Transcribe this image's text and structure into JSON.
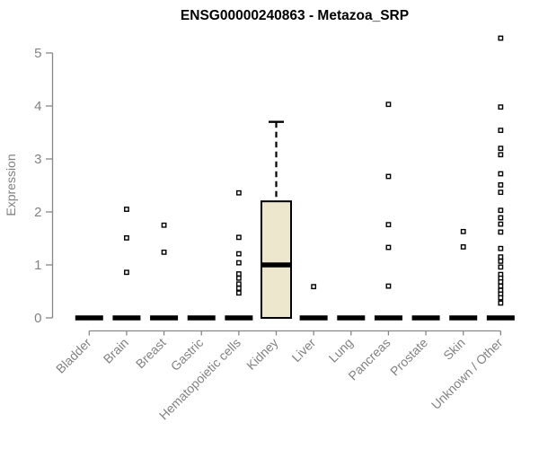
{
  "chart_data": {
    "type": "boxplot",
    "title": "ENSG00000240863 - Metazoa_SRP",
    "ylabel": "Expression",
    "xlabel": "",
    "ylim": [
      0,
      5.3
    ],
    "y_ticks": [
      0,
      1,
      2,
      3,
      4,
      5
    ],
    "legend": "none",
    "grid": false,
    "colors": {
      "background": "#FFFFFF",
      "title": "#000000",
      "axis": "#878787",
      "text": "#828282",
      "data": "#000000",
      "box_fill": "#EDE7CE",
      "point_fill": "#FFFFFF"
    },
    "categories": [
      "Bladder",
      "Brain",
      "Breast",
      "Gastric",
      "Hematopoietic cells",
      "Kidney",
      "Liver",
      "Lung",
      "Pancreas",
      "Prostate",
      "Skin",
      "Unknown / Other"
    ],
    "series": [
      {
        "label": "Bladder",
        "q1": 0,
        "median": 0,
        "q3": 0,
        "whisker_low": 0,
        "whisker_high": 0,
        "outliers": []
      },
      {
        "label": "Brain",
        "q1": 0,
        "median": 0,
        "q3": 0,
        "whisker_low": 0,
        "whisker_high": 0,
        "outliers": [
          2.05,
          1.51,
          0.86
        ]
      },
      {
        "label": "Breast",
        "q1": 0,
        "median": 0,
        "q3": 0,
        "whisker_low": 0,
        "whisker_high": 0,
        "outliers": [
          1.75,
          1.24
        ]
      },
      {
        "label": "Gastric",
        "q1": 0,
        "median": 0,
        "q3": 0,
        "whisker_low": 0,
        "whisker_high": 0,
        "outliers": []
      },
      {
        "label": "Hematopoietic cells",
        "q1": 0,
        "median": 0,
        "q3": 0,
        "whisker_low": 0,
        "whisker_high": 0,
        "outliers": [
          2.36,
          1.52,
          1.21,
          1.04,
          0.83,
          0.75,
          0.64,
          0.56,
          0.47
        ]
      },
      {
        "label": "Kidney",
        "q1": 0,
        "median": 1.0,
        "q3": 2.2,
        "whisker_low": 0,
        "whisker_high": 3.7,
        "outliers": []
      },
      {
        "label": "Liver",
        "q1": 0,
        "median": 0,
        "q3": 0,
        "whisker_low": 0,
        "whisker_high": 0,
        "outliers": [
          0.59
        ]
      },
      {
        "label": "Lung",
        "q1": 0,
        "median": 0,
        "q3": 0,
        "whisker_low": 0,
        "whisker_high": 0,
        "outliers": []
      },
      {
        "label": "Pancreas",
        "q1": 0,
        "median": 0,
        "q3": 0,
        "whisker_low": 0,
        "whisker_high": 0,
        "outliers": [
          4.03,
          2.67,
          1.76,
          1.33,
          0.6
        ]
      },
      {
        "label": "Prostate",
        "q1": 0,
        "median": 0,
        "q3": 0,
        "whisker_low": 0,
        "whisker_high": 0,
        "outliers": []
      },
      {
        "label": "Skin",
        "q1": 0,
        "median": 0,
        "q3": 0,
        "whisker_low": 0,
        "whisker_high": 0,
        "outliers": [
          1.63,
          1.34
        ]
      },
      {
        "label": "Unknown / Other",
        "q1": 0,
        "median": 0,
        "q3": 0,
        "whisker_low": 0,
        "whisker_high": 0,
        "outliers": [
          5.28,
          3.98,
          3.54,
          3.2,
          3.08,
          2.72,
          2.51,
          2.37,
          2.03,
          1.89,
          1.77,
          1.62,
          1.31,
          1.15,
          1.07,
          0.96,
          0.82,
          0.75,
          0.68,
          0.6,
          0.52,
          0.45,
          0.38,
          0.28
        ]
      }
    ]
  }
}
